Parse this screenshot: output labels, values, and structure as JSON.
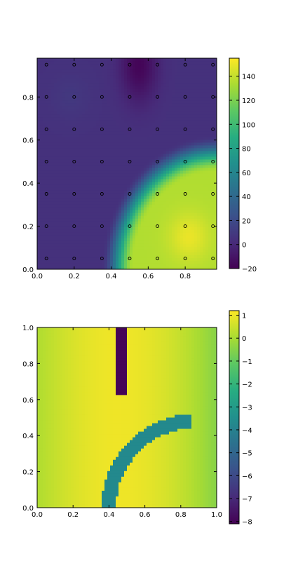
{
  "chart_data": [
    {
      "type": "heatmap",
      "title": "",
      "xlabel": "",
      "ylabel": "",
      "xlim": [
        0.0,
        0.97
      ],
      "ylim": [
        0.0,
        0.98
      ],
      "x_ticks": [
        "0.0",
        "0.2",
        "0.4",
        "0.6",
        "0.8"
      ],
      "y_ticks": [
        "0.0",
        "0.2",
        "0.4",
        "0.6",
        "0.8"
      ],
      "colormap": "viridis",
      "colorbar": {
        "range": [
          -20,
          155
        ],
        "ticks": [
          "−20",
          "0",
          "20",
          "40",
          "60",
          "80",
          "100",
          "120",
          "140"
        ]
      },
      "sample_points": {
        "x": [
          0.05,
          0.2,
          0.35,
          0.5,
          0.65,
          0.8,
          0.95
        ],
        "y": [
          0.05,
          0.2,
          0.35,
          0.5,
          0.65,
          0.8,
          0.95
        ]
      },
      "regions": {
        "arc_center": [
          0.97,
          0.0
        ],
        "arc_inner_radius": 0.45,
        "arc_outer_radius": 0.62,
        "outside_value": 5,
        "inside_value": 135,
        "hot_spot": {
          "x": 0.82,
          "y": 0.15,
          "value": 150
        },
        "cold_spot": {
          "x": 0.55,
          "y": 0.95,
          "value": -18
        }
      }
    },
    {
      "type": "heatmap",
      "title": "",
      "xlabel": "",
      "ylabel": "",
      "xlim": [
        0.0,
        1.0
      ],
      "ylim": [
        0.0,
        1.0
      ],
      "x_ticks": [
        "0.0",
        "0.2",
        "0.4",
        "0.6",
        "0.8",
        "1.0"
      ],
      "y_ticks": [
        "0.0",
        "0.2",
        "0.4",
        "0.6",
        "0.8",
        "1.0"
      ],
      "colormap": "viridis",
      "colorbar": {
        "range": [
          -8.1,
          1.2
        ],
        "ticks": [
          "−8",
          "−7",
          "−6",
          "−5",
          "−4",
          "−3",
          "−2",
          "−1",
          "0",
          "1"
        ]
      },
      "background": {
        "peak_x": 0.45,
        "peak_value": 1.0,
        "left_value": 0.1,
        "right_value": -0.5
      },
      "bar": {
        "x": [
          0.44,
          0.5
        ],
        "y": [
          0.625,
          1.0
        ],
        "value": -8
      },
      "arc": {
        "center": [
          0.88,
          0.0
        ],
        "inner_radius": 0.44,
        "outer_radius": 0.52,
        "y_max": 0.63,
        "value": -3.7
      }
    }
  ]
}
